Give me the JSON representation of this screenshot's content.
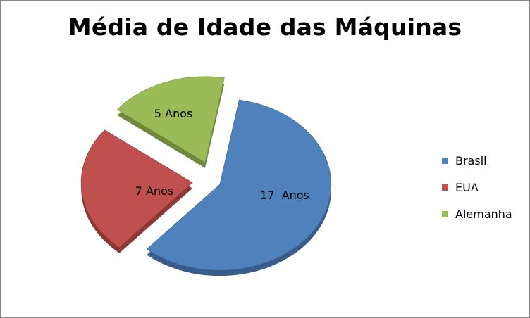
{
  "chart_data": {
    "type": "pie",
    "title": "Média de Idade das Máquinas",
    "slices": [
      {
        "name": "Brasil",
        "value": 17,
        "label": "17  Anos",
        "color": "#4F81BD",
        "side": "#385D8A"
      },
      {
        "name": "EUA",
        "value": 7,
        "label": "7 Anos",
        "color": "#C0504D",
        "side": "#8C3836"
      },
      {
        "name": "Alemanha",
        "value": 5,
        "label": "5 Anos",
        "color": "#9BBB59",
        "side": "#71893F"
      }
    ],
    "exploded": true,
    "three_d": true,
    "legend_position": "right"
  }
}
